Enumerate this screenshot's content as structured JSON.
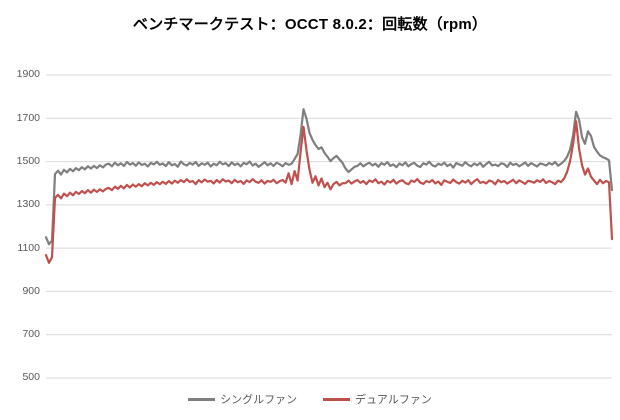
{
  "chart_data": {
    "type": "line",
    "title": "ベンチマークテスト：OCCT 8.0.2：回転数（rpm）",
    "xlabel": "",
    "ylabel": "",
    "ylim": [
      500,
      1900
    ],
    "yticks": [
      500,
      700,
      900,
      1100,
      1300,
      1500,
      1700,
      1900
    ],
    "grid": true,
    "legend_position": "bottom",
    "colors": {
      "grid": "#d9d9d9",
      "tick_label": "#595959",
      "legend_text": "#595959",
      "title": "#000000",
      "background": "#ffffff"
    },
    "series": [
      {
        "name": "シングルファン",
        "color": "#7f7f7f",
        "values": [
          1150,
          1118,
          1135,
          1442,
          1458,
          1440,
          1462,
          1450,
          1466,
          1455,
          1470,
          1460,
          1474,
          1464,
          1478,
          1468,
          1480,
          1470,
          1483,
          1473,
          1486,
          1490,
          1478,
          1495,
          1483,
          1492,
          1480,
          1498,
          1486,
          1493,
          1481,
          1496,
          1484,
          1490,
          1477,
          1494,
          1487,
          1499,
          1485,
          1491,
          1479,
          1497,
          1483,
          1489,
          1476,
          1500,
          1488,
          1482,
          1494,
          1486,
          1498,
          1480,
          1492,
          1485,
          1495,
          1477,
          1490,
          1483,
          1499,
          1487,
          1493,
          1479,
          1496,
          1484,
          1491,
          1478,
          1494,
          1488,
          1500,
          1482,
          1490,
          1476,
          1486,
          1497,
          1483,
          1492,
          1480,
          1495,
          1488,
          1478,
          1493,
          1485,
          1490,
          1512,
          1535,
          1625,
          1742,
          1698,
          1632,
          1600,
          1576,
          1558,
          1566,
          1540,
          1522,
          1502,
          1516,
          1526,
          1510,
          1494,
          1468,
          1452,
          1464,
          1476,
          1480,
          1492,
          1478,
          1488,
          1495,
          1482,
          1490,
          1476,
          1493,
          1485,
          1498,
          1480,
          1487,
          1474,
          1491,
          1483,
          1496,
          1478,
          1489,
          1494,
          1481,
          1475,
          1492,
          1486,
          1499,
          1483,
          1477,
          1490,
          1484,
          1495,
          1479,
          1488,
          1472,
          1493,
          1487,
          1481,
          1497,
          1485,
          1478,
          1491,
          1483,
          1494,
          1476,
          1489,
          1499,
          1482,
          1486,
          1479,
          1492,
          1488,
          1475,
          1495,
          1484,
          1490,
          1478,
          1487,
          1496,
          1480,
          1493,
          1485,
          1477,
          1491,
          1488,
          1482,
          1494,
          1486,
          1498,
          1481,
          1490,
          1502,
          1522,
          1556,
          1622,
          1730,
          1692,
          1612,
          1582,
          1640,
          1618,
          1568,
          1546,
          1528,
          1520,
          1514,
          1506,
          1368
        ]
      },
      {
        "name": "デュアルファン",
        "color": "#c0504d",
        "values": [
          1068,
          1032,
          1058,
          1332,
          1346,
          1330,
          1352,
          1340,
          1356,
          1344,
          1360,
          1350,
          1364,
          1354,
          1368,
          1356,
          1370,
          1360,
          1372,
          1362,
          1374,
          1378,
          1368,
          1384,
          1374,
          1388,
          1376,
          1392,
          1380,
          1394,
          1384,
          1396,
          1386,
          1400,
          1390,
          1402,
          1392,
          1405,
          1395,
          1407,
          1397,
          1410,
          1398,
          1412,
          1402,
          1415,
          1405,
          1418,
          1406,
          1410,
          1396,
          1414,
          1404,
          1417,
          1407,
          1411,
          1399,
          1415,
          1403,
          1418,
          1408,
          1412,
          1400,
          1416,
          1404,
          1410,
          1397,
          1413,
          1405,
          1419,
          1407,
          1402,
          1414,
          1398,
          1411,
          1406,
          1416,
          1400,
          1409,
          1415,
          1403,
          1446,
          1396,
          1456,
          1412,
          1545,
          1660,
          1552,
          1462,
          1402,
          1432,
          1390,
          1422,
          1382,
          1402,
          1372,
          1396,
          1406,
          1390,
          1400,
          1400,
          1412,
          1398,
          1408,
          1415,
          1402,
          1410,
          1396,
          1413,
          1405,
          1418,
          1400,
          1407,
          1394,
          1411,
          1403,
          1416,
          1398,
          1409,
          1414,
          1401,
          1395,
          1412,
          1406,
          1419,
          1403,
          1397,
          1410,
          1404,
          1415,
          1399,
          1408,
          1392,
          1413,
          1407,
          1401,
          1417,
          1405,
          1398,
          1411,
          1403,
          1414,
          1396,
          1409,
          1419,
          1402,
          1406,
          1399,
          1412,
          1408,
          1395,
          1415,
          1404,
          1410,
          1398,
          1407,
          1416,
          1400,
          1413,
          1405,
          1397,
          1411,
          1408,
          1402,
          1414,
          1406,
          1418,
          1401,
          1410,
          1404,
          1396,
          1412,
          1405,
          1422,
          1452,
          1502,
          1582,
          1686,
          1558,
          1482,
          1440,
          1468,
          1430,
          1412,
          1396,
          1416,
          1400,
          1410,
          1404,
          1142
        ]
      }
    ]
  }
}
